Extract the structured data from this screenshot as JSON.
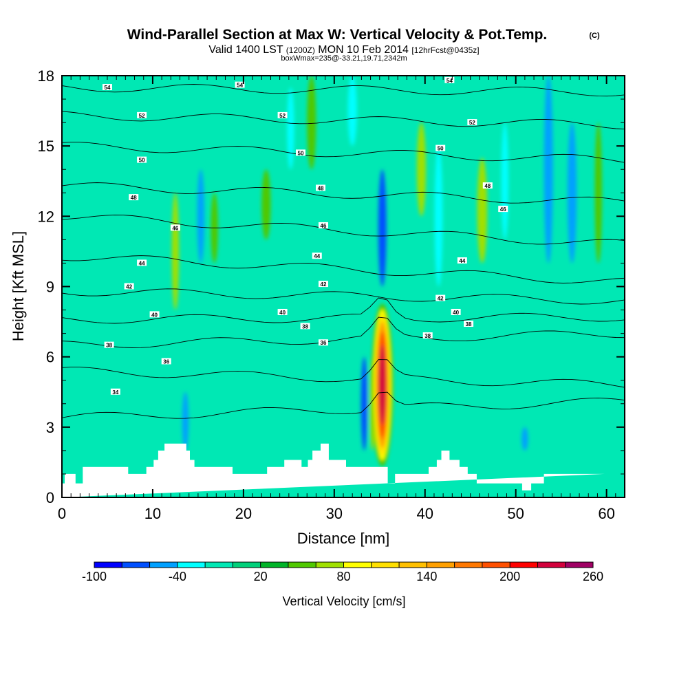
{
  "header": {
    "title": "Wind-Parallel Section at Max W: Vertical Velocity & Pot.Temp.",
    "title_mark": "(C)",
    "valid_prefix": "Valid 1400 LST",
    "valid_utc": "(1200Z)",
    "valid_date": "MON 10 Feb 2014",
    "forecast": "[12hrFcst@0435z]",
    "box_info": "boxWmax=235@-33.21,19.71,2342m"
  },
  "chart_data": {
    "type": "heatmap",
    "title": "Wind-Parallel Section at Max W: Vertical Velocity & Pot.Temp.",
    "xlabel": "Distance [nm]",
    "ylabel": "Height [Kft MSL]",
    "xlim": [
      0,
      62
    ],
    "ylim": [
      0,
      18
    ],
    "x_ticks": [
      0,
      10,
      20,
      30,
      40,
      50,
      60
    ],
    "y_ticks": [
      0,
      3,
      6,
      9,
      12,
      15,
      18
    ],
    "colorbar": {
      "label": "Vertical Velocity [cm/s]",
      "tick_values": [
        -100,
        -40,
        20,
        80,
        140,
        200,
        260
      ],
      "tick_labels": [
        "-100",
        "-40",
        "20",
        "80",
        "140",
        "200",
        "260"
      ],
      "levels": [
        -100,
        -80,
        -60,
        -40,
        -20,
        0,
        20,
        40,
        60,
        80,
        100,
        120,
        140,
        160,
        180,
        200,
        220,
        240,
        260
      ],
      "colors": [
        "#0000ff",
        "#0050ff",
        "#00a0ff",
        "#00ffff",
        "#00e8b4",
        "#00d07a",
        "#00b428",
        "#50c800",
        "#a0e000",
        "#ffff00",
        "#ffe000",
        "#ffc000",
        "#ffa000",
        "#ff7800",
        "#ff5000",
        "#ff0000",
        "#d2003c",
        "#a00064"
      ]
    },
    "max_w": {
      "value": 235,
      "units": "cm/s",
      "x": 35.3,
      "height_kft": 4.8
    },
    "terrain": {
      "x": [
        0,
        0.3,
        0.3,
        1.5,
        1.5,
        2.3,
        2.3,
        7.3,
        7.3,
        9.3,
        9.3,
        10.1,
        10.1,
        10.6,
        10.6,
        11.3,
        11.3,
        13.7,
        13.7,
        14.1,
        14.1,
        14.6,
        14.6,
        18.8,
        18.8,
        22.6,
        22.6,
        24.5,
        24.5,
        26.4,
        26.4,
        27.1,
        27.1,
        27.6,
        27.6,
        28.5,
        28.5,
        29.4,
        29.4,
        31.3,
        31.3,
        35.9,
        35.9,
        36.7,
        36.7,
        40.4,
        40.4,
        41.3,
        41.3,
        41.8,
        41.8,
        42.7,
        42.7,
        43.8,
        43.8,
        44.7,
        44.7,
        45.7,
        45.7,
        50.7,
        50.7,
        51.7,
        51.7,
        53.1,
        53.1,
        59.8,
        59.8,
        62
      ],
      "h": [
        0.6,
        0.6,
        1.0,
        1.0,
        0.6,
        0.6,
        1.3,
        1.3,
        1.0,
        1.0,
        1.3,
        1.3,
        1.6,
        1.6,
        2.0,
        2.0,
        2.3,
        2.3,
        2.0,
        2.0,
        1.6,
        1.6,
        1.3,
        1.3,
        1.0,
        1.0,
        1.3,
        1.3,
        1.6,
        1.6,
        1.3,
        1.3,
        1.6,
        1.6,
        2.0,
        2.0,
        2.3,
        2.3,
        1.6,
        1.6,
        1.3,
        1.3,
        0.6,
        0.6,
        1.0,
        1.0,
        1.3,
        1.3,
        1.6,
        1.6,
        2.0,
        2.0,
        1.6,
        1.6,
        1.3,
        1.3,
        1.0,
        1.0,
        0.6,
        0.6,
        0.3,
        0.3,
        0.6,
        0.6,
        1.0,
        1.0
      ]
    },
    "columns": [
      {
        "x": 12.5,
        "w": 0.8,
        "bot": 8,
        "top": 13,
        "v": 60
      },
      {
        "x": 13.6,
        "w": 0.7,
        "bot": 2,
        "top": 4.5,
        "v": -60
      },
      {
        "x": 15.3,
        "w": 0.8,
        "bot": 10,
        "top": 14,
        "v": -60
      },
      {
        "x": 16.8,
        "w": 0.8,
        "bot": 10,
        "top": 13,
        "v": 50
      },
      {
        "x": 22.5,
        "w": 1.0,
        "bot": 11,
        "top": 14,
        "v": 40
      },
      {
        "x": 25.2,
        "w": 0.8,
        "bot": 14,
        "top": 17.5,
        "v": -40
      },
      {
        "x": 27.5,
        "w": 1.0,
        "bot": 14,
        "top": 18,
        "v": 40
      },
      {
        "x": 32.0,
        "w": 1.0,
        "bot": 15,
        "top": 18,
        "v": -40
      },
      {
        "x": 33.3,
        "w": 0.7,
        "bot": 2,
        "top": 6,
        "v": -80
      },
      {
        "x": 34.2,
        "w": 0.6,
        "bot": 2,
        "top": 6,
        "v": 60
      },
      {
        "x": 35.3,
        "w": 0.9,
        "bot": 9,
        "top": 14,
        "v": -80
      },
      {
        "x": 39.6,
        "w": 1.0,
        "bot": 12,
        "top": 16,
        "v": 60
      },
      {
        "x": 41.5,
        "w": 0.9,
        "bot": 9,
        "top": 15,
        "v": -40
      },
      {
        "x": 46.3,
        "w": 1.1,
        "bot": 10,
        "top": 14.5,
        "v": 70
      },
      {
        "x": 48.8,
        "w": 0.8,
        "bot": 11,
        "top": 16,
        "v": -40
      },
      {
        "x": 51.0,
        "w": 0.7,
        "bot": 2,
        "top": 3,
        "v": -60
      },
      {
        "x": 53.6,
        "w": 1.0,
        "bot": 10,
        "top": 18,
        "v": -60
      },
      {
        "x": 56.2,
        "w": 1.0,
        "bot": 10,
        "top": 16,
        "v": -60
      },
      {
        "x": 59.1,
        "w": 0.8,
        "bot": 10,
        "top": 16,
        "v": 40
      }
    ],
    "isentropes": [
      {
        "level": 34,
        "h0": 3.4,
        "h1": 4.1
      },
      {
        "level": 36,
        "h0": 5.4,
        "h1": 4.8
      },
      {
        "level": 38,
        "h0": 6.5,
        "h1": 7.0
      },
      {
        "level": 40,
        "h0": 7.6,
        "h1": 7.7
      },
      {
        "level": 42,
        "h0": 8.8,
        "h1": 8.4
      },
      {
        "level": 44,
        "h0": 10.3,
        "h1": 9.2
      },
      {
        "level": 46,
        "h0": 12.0,
        "h1": 10.8
      },
      {
        "level": 48,
        "h0": 13.3,
        "h1": 12.6
      },
      {
        "level": 50,
        "h0": 15.0,
        "h1": 14.4
      },
      {
        "level": 52,
        "h0": 16.3,
        "h1": 15.9
      },
      {
        "level": 54,
        "h0": 17.5,
        "h1": 17.3
      }
    ],
    "contour_labels": [
      {
        "text": "54",
        "x": 5.0,
        "y": 17.5
      },
      {
        "text": "54",
        "x": 19.6,
        "y": 17.6
      },
      {
        "text": "54",
        "x": 42.7,
        "y": 17.8
      },
      {
        "text": "52",
        "x": 8.8,
        "y": 16.3
      },
      {
        "text": "52",
        "x": 24.3,
        "y": 16.3
      },
      {
        "text": "52",
        "x": 45.2,
        "y": 16.0
      },
      {
        "text": "50",
        "x": 8.8,
        "y": 14.4
      },
      {
        "text": "50",
        "x": 26.3,
        "y": 14.7
      },
      {
        "text": "50",
        "x": 41.7,
        "y": 14.9
      },
      {
        "text": "48",
        "x": 7.9,
        "y": 12.8
      },
      {
        "text": "48",
        "x": 28.5,
        "y": 13.2
      },
      {
        "text": "48",
        "x": 46.9,
        "y": 13.3
      },
      {
        "text": "46",
        "x": 12.5,
        "y": 11.5
      },
      {
        "text": "46",
        "x": 28.8,
        "y": 11.6
      },
      {
        "text": "46",
        "x": 48.6,
        "y": 12.3
      },
      {
        "text": "44",
        "x": 8.8,
        "y": 10.0
      },
      {
        "text": "44",
        "x": 28.1,
        "y": 10.3
      },
      {
        "text": "44",
        "x": 44.1,
        "y": 10.1
      },
      {
        "text": "42",
        "x": 7.4,
        "y": 9.0
      },
      {
        "text": "42",
        "x": 28.8,
        "y": 9.1
      },
      {
        "text": "42",
        "x": 41.7,
        "y": 8.5
      },
      {
        "text": "40",
        "x": 10.2,
        "y": 7.8
      },
      {
        "text": "40",
        "x": 24.3,
        "y": 7.9
      },
      {
        "text": "40",
        "x": 43.4,
        "y": 7.9
      },
      {
        "text": "38",
        "x": 5.2,
        "y": 6.5
      },
      {
        "text": "38",
        "x": 26.8,
        "y": 7.3
      },
      {
        "text": "38",
        "x": 44.8,
        "y": 7.4
      },
      {
        "text": "36",
        "x": 11.5,
        "y": 5.8
      },
      {
        "text": "36",
        "x": 28.8,
        "y": 6.6
      },
      {
        "text": "38",
        "x": 40.3,
        "y": 6.9
      },
      {
        "text": "34",
        "x": 5.9,
        "y": 4.5
      }
    ]
  }
}
